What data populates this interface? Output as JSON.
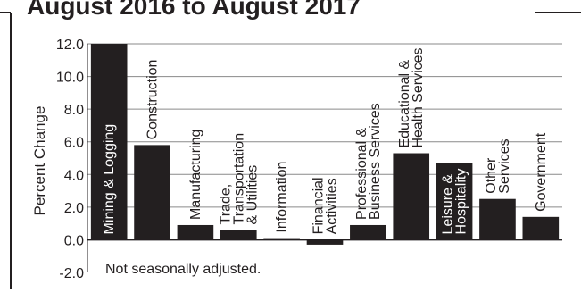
{
  "chart_data": {
    "type": "bar",
    "title": "August 2016 to August 2017",
    "ylabel": "Percent Change",
    "xlabel": "",
    "note": "Not seasonally adjusted.",
    "ylim": [
      -2.0,
      12.0
    ],
    "yticks": [
      -2.0,
      0.0,
      2.0,
      4.0,
      6.0,
      8.0,
      10.0,
      12.0
    ],
    "ytick_labels": [
      "-2.0",
      "0.0",
      "2.0",
      "4.0",
      "6.0",
      "8.0",
      "10.0",
      "12.0"
    ],
    "grid": true,
    "bar_color": "#231f20",
    "categories": [
      [
        "Mining & Logging"
      ],
      [
        "Construction"
      ],
      [
        "Manufacturing"
      ],
      [
        "Trade,",
        "Transportation",
        "& Utilities"
      ],
      [
        "Information"
      ],
      [
        "Financial",
        "Activities"
      ],
      [
        "Professional &",
        "Business Services"
      ],
      [
        "Educational &",
        "Health Services"
      ],
      [
        "Leisure &",
        "Hospitality"
      ],
      [
        "Other",
        "Services"
      ],
      [
        "Government"
      ]
    ],
    "label_inside": [
      true,
      false,
      false,
      false,
      false,
      false,
      false,
      false,
      true,
      false,
      false
    ],
    "values": [
      12.0,
      5.8,
      0.9,
      0.6,
      0.1,
      -0.3,
      0.9,
      5.3,
      4.7,
      2.5,
      1.4
    ]
  }
}
